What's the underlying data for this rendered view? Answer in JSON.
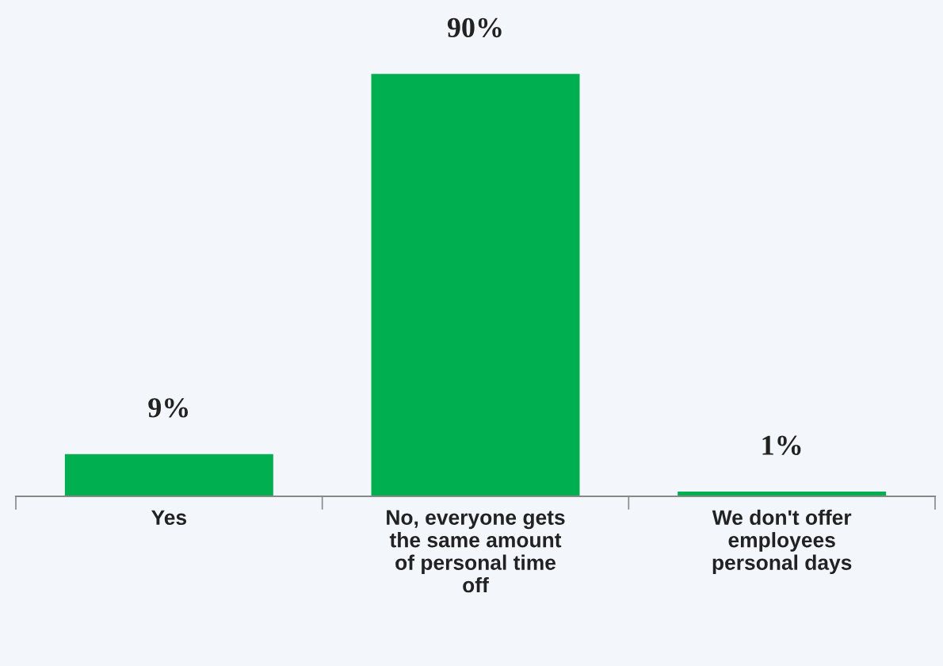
{
  "chart_data": {
    "type": "bar",
    "categories": [
      "Yes",
      "No, everyone gets the same amount of personal time off",
      "We don't offer employees personal days"
    ],
    "values": [
      9,
      90,
      1
    ],
    "value_labels": [
      "9%",
      "90%",
      "1%"
    ],
    "color": "#00b050",
    "grid": false,
    "legend": false
  }
}
